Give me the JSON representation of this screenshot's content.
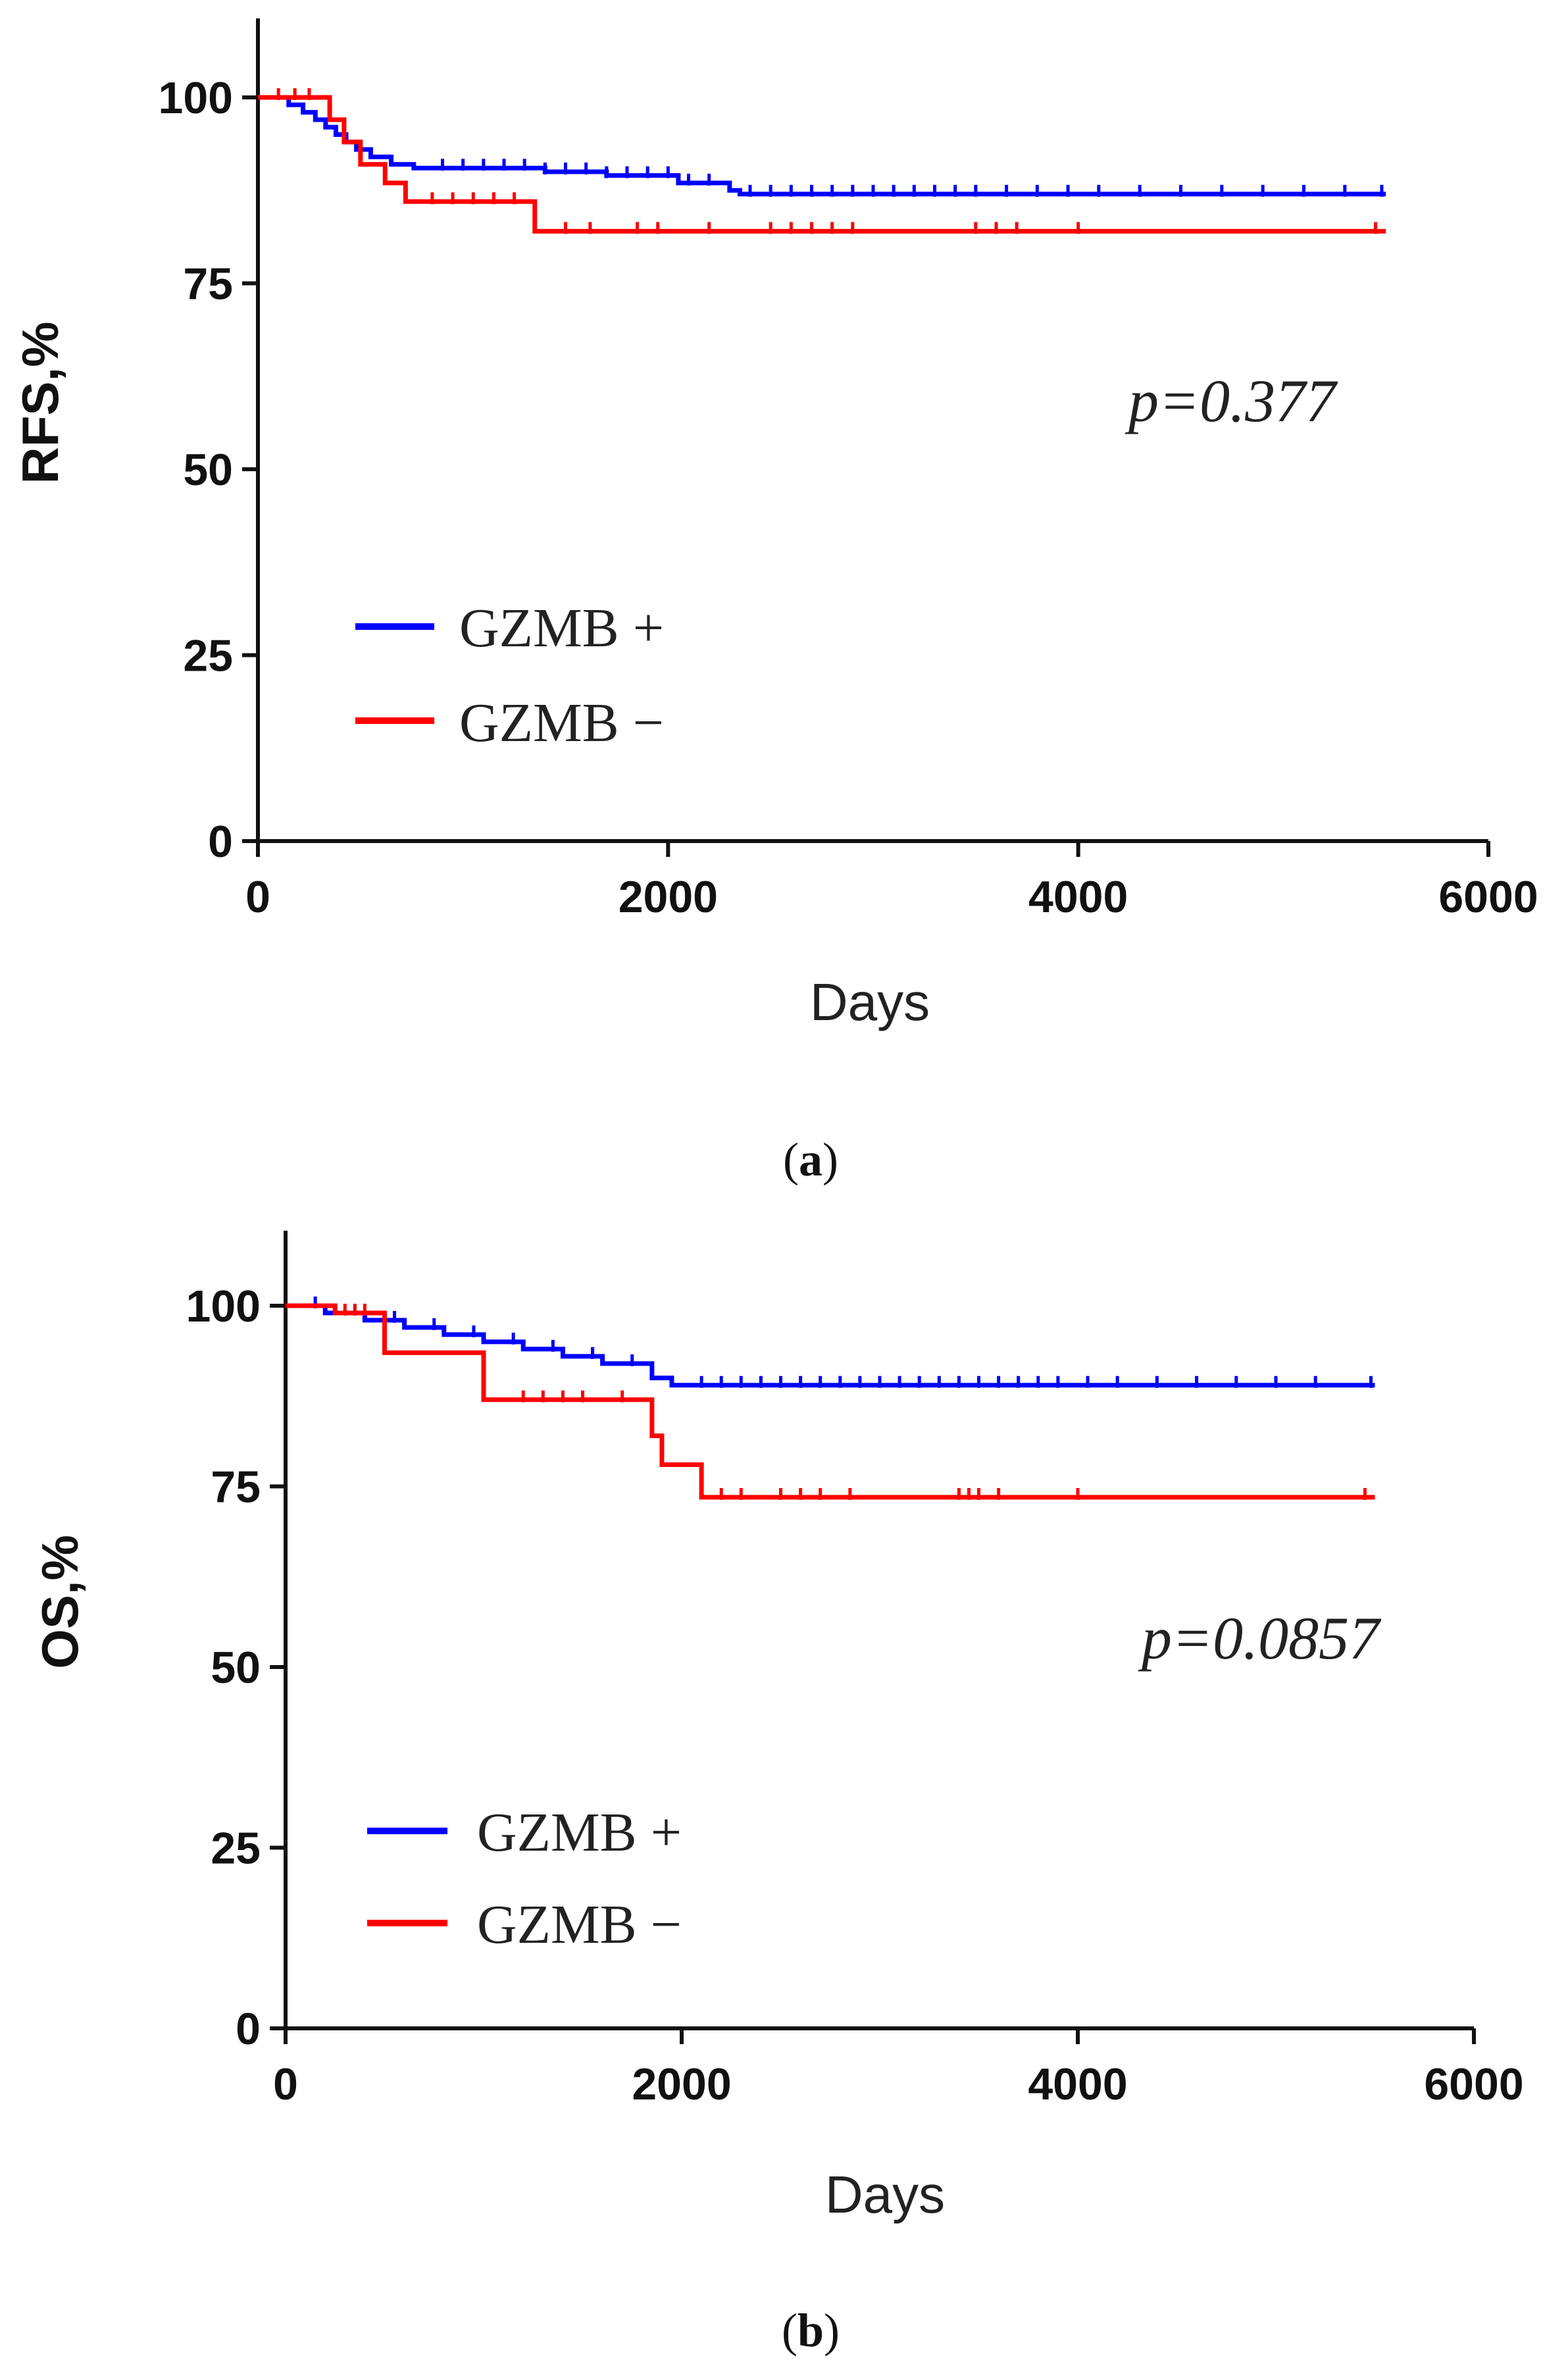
{
  "colors": {
    "blue": "#0000ff",
    "red": "#ff0000"
  },
  "chart_data": [
    {
      "type": "line",
      "panel": "a",
      "caption_open": "(",
      "caption_letter": "a",
      "caption_close": ")",
      "ylabel": "RFS,%",
      "xlabel": "Days",
      "xlim": [
        0,
        6000
      ],
      "ylim": [
        0,
        110
      ],
      "xticks": [
        0,
        2000,
        4000,
        6000
      ],
      "yticks": [
        0,
        25,
        50,
        75,
        100
      ],
      "annotation": "p=0.377",
      "legend_position": "lower-left",
      "series": [
        {
          "name": "GZMB +",
          "color": "#0000ff",
          "x": [
            0,
            150,
            220,
            280,
            330,
            380,
            430,
            480,
            550,
            650,
            760,
            900,
            1100,
            1400,
            1700,
            2050,
            2300,
            2350,
            3500,
            5500
          ],
          "y": [
            100,
            99,
            98,
            97,
            96,
            95,
            94,
            93,
            92,
            91,
            90.5,
            90.5,
            90.5,
            90,
            89.5,
            88.5,
            87.5,
            87,
            87,
            87
          ],
          "censor_x": [
            900,
            1000,
            1100,
            1200,
            1300,
            1400,
            1500,
            1600,
            1700,
            1800,
            1900,
            2000,
            2100,
            2200,
            2400,
            2500,
            2600,
            2700,
            2800,
            2900,
            3000,
            3100,
            3200,
            3300,
            3400,
            3500,
            3650,
            3800,
            3950,
            4100,
            4300,
            4500,
            4700,
            4900,
            5100,
            5300,
            5480
          ]
        },
        {
          "name": "GZMB −",
          "color": "#ff0000",
          "x": [
            0,
            300,
            350,
            420,
            500,
            620,
            720,
            1000,
            1350,
            5500
          ],
          "y": [
            100,
            100,
            97,
            94,
            91,
            88.5,
            86,
            86,
            82,
            82
          ],
          "censor_x": [
            100,
            180,
            250,
            850,
            950,
            1050,
            1150,
            1250,
            1500,
            1620,
            1850,
            1950,
            2200,
            2500,
            2600,
            2700,
            2800,
            2900,
            3500,
            3600,
            3700,
            4000,
            5450
          ]
        }
      ]
    },
    {
      "type": "line",
      "panel": "b",
      "caption_open": "(",
      "caption_letter": "b",
      "caption_close": ")",
      "ylabel": "OS,%",
      "xlabel": "Days",
      "xlim": [
        0,
        6000
      ],
      "ylim": [
        0,
        110
      ],
      "xticks": [
        0,
        2000,
        4000,
        6000
      ],
      "yticks": [
        0,
        25,
        50,
        75,
        100
      ],
      "annotation": "p=0.0857",
      "legend_position": "lower-left",
      "series": [
        {
          "name": "GZMB +",
          "color": "#0000ff",
          "x": [
            0,
            200,
            400,
            600,
            800,
            1000,
            1200,
            1400,
            1600,
            1850,
            1950,
            5500
          ],
          "y": [
            100,
            99,
            98,
            97,
            96,
            95,
            94,
            93,
            92,
            90,
            89,
            89
          ],
          "censor_x": [
            150,
            350,
            550,
            750,
            950,
            1150,
            1350,
            1550,
            1750,
            2100,
            2200,
            2300,
            2400,
            2500,
            2600,
            2700,
            2800,
            2900,
            3000,
            3100,
            3200,
            3300,
            3400,
            3500,
            3600,
            3700,
            3800,
            3900,
            4050,
            4200,
            4400,
            4600,
            4800,
            5000,
            5200,
            5480
          ]
        },
        {
          "name": "GZMB −",
          "color": "#ff0000",
          "x": [
            0,
            250,
            500,
            1000,
            1850,
            1900,
            2100,
            5500
          ],
          "y": [
            100,
            99,
            93.5,
            87,
            82,
            78,
            73.5,
            73.5
          ],
          "censor_x": [
            300,
            350,
            400,
            1200,
            1300,
            1400,
            1500,
            1700,
            2200,
            2300,
            2500,
            2600,
            2700,
            2850,
            3400,
            3450,
            3500,
            3600,
            4000,
            5450
          ]
        }
      ]
    }
  ]
}
